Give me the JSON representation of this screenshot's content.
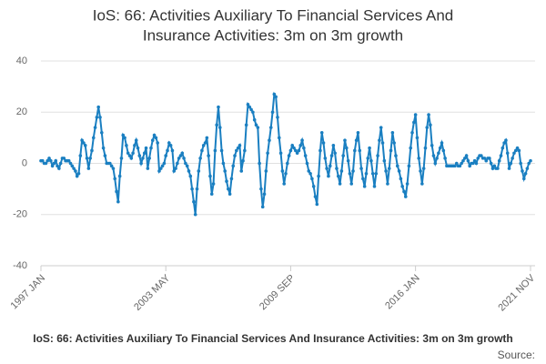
{
  "chart_data": {
    "type": "line",
    "title": [
      "IoS: 66: Activities Auxiliary To Financial Services And",
      "Insurance Activities: 3m on 3m growth"
    ],
    "caption": "IoS: 66: Activities Auxiliary To Financial Services And Insurance Activities: 3m on 3m growth",
    "source": "Source:",
    "color": "#1a7fc1",
    "ylim": [
      -40,
      40
    ],
    "yticks": [
      -40,
      -20,
      0,
      20,
      40
    ],
    "grid": true,
    "categories": [
      "1997 JAN",
      null,
      null,
      null,
      null,
      null,
      null,
      null,
      null,
      null,
      null,
      null,
      null,
      null,
      null,
      null,
      null,
      null,
      null,
      null,
      null,
      null,
      null,
      null,
      null,
      null,
      null,
      null,
      null,
      null,
      null,
      null,
      null,
      null,
      null,
      null,
      null,
      null,
      null,
      null,
      null,
      null,
      null,
      null,
      null,
      null,
      null,
      null,
      null,
      null,
      null,
      null,
      null,
      null,
      null,
      null,
      null,
      null,
      null,
      null,
      null,
      null,
      null,
      null,
      null,
      null,
      null,
      null,
      null,
      null,
      null,
      null,
      null,
      null,
      null,
      null,
      "2003 MAY",
      null,
      null,
      null,
      null,
      null,
      null,
      null,
      null,
      null,
      null,
      null,
      null,
      null,
      null,
      null,
      null,
      null,
      null,
      null,
      null,
      null,
      null,
      null,
      null,
      null,
      null,
      null,
      null,
      null,
      null,
      null,
      null,
      null,
      null,
      null,
      null,
      null,
      null,
      null,
      null,
      null,
      null,
      null,
      null,
      null,
      null,
      null,
      null,
      null,
      null,
      null,
      null,
      null,
      null,
      null,
      null,
      null,
      null,
      null,
      null,
      null,
      null,
      null,
      null,
      null,
      null,
      null,
      null,
      null,
      null,
      null,
      null,
      null,
      null,
      null,
      "2009 SEP",
      null,
      null,
      null,
      null,
      null,
      null,
      null,
      null,
      null,
      null,
      null,
      null,
      null,
      null,
      null,
      null,
      null,
      null,
      null,
      null,
      null,
      null,
      null,
      null,
      null,
      null,
      null,
      null,
      null,
      null,
      null,
      null,
      null,
      null,
      null,
      null,
      null,
      null,
      null,
      null,
      null,
      null,
      null,
      null,
      null,
      null,
      null,
      null,
      null,
      null,
      null,
      null,
      null,
      null,
      null,
      null,
      null,
      null,
      null,
      null,
      null,
      null,
      null,
      null,
      null,
      null,
      null,
      null,
      null,
      null,
      null,
      null,
      null,
      null,
      null,
      "2016 JAN",
      null,
      null,
      null,
      null,
      null,
      null,
      null,
      null,
      null,
      null,
      null,
      null,
      null,
      null,
      null,
      null,
      null,
      null,
      null,
      null,
      null,
      null,
      null,
      null,
      null,
      null,
      null,
      null,
      null,
      null,
      null,
      null,
      null,
      null,
      null,
      null,
      null,
      null,
      null,
      null,
      null,
      null,
      null,
      null,
      null,
      null,
      null,
      null,
      null,
      null,
      null,
      null,
      null,
      null,
      null,
      null,
      null,
      null,
      null,
      null,
      null,
      null,
      null,
      null,
      null,
      null,
      null,
      null,
      null,
      "2021 NOV"
    ],
    "values": [
      1,
      1,
      0,
      0,
      1,
      2,
      1,
      -1,
      0,
      1,
      -1,
      -2,
      0,
      2,
      2,
      1,
      1,
      1,
      0,
      -1,
      -2,
      -3,
      -5,
      -4,
      3,
      9,
      8,
      7,
      2,
      -2,
      2,
      5,
      10,
      14,
      18,
      22,
      18,
      12,
      6,
      3,
      0,
      0,
      0,
      -1,
      -2,
      -6,
      -11,
      -15,
      -5,
      2,
      11,
      10,
      7,
      4,
      3,
      2,
      4,
      7,
      9,
      6,
      3,
      0,
      2,
      4,
      6,
      -2,
      2,
      6,
      9,
      11,
      10,
      8,
      -3,
      -2,
      -1,
      0,
      3,
      5,
      8,
      7,
      5,
      -3,
      -2,
      0,
      2,
      3,
      4,
      2,
      0,
      -1,
      -3,
      -5,
      -10,
      -15,
      -20,
      -10,
      -3,
      2,
      5,
      7,
      8,
      10,
      3,
      -5,
      -12,
      -8,
      5,
      15,
      22,
      14,
      5,
      0,
      -3,
      -7,
      -10,
      -12,
      -6,
      -1,
      3,
      5,
      6,
      7,
      -3,
      1,
      5,
      15,
      23,
      22,
      21,
      20,
      17,
      15,
      14,
      0,
      -10,
      -17,
      -12,
      -3,
      4,
      9,
      14,
      20,
      27,
      26,
      18,
      10,
      4,
      -3,
      -8,
      -4,
      0,
      3,
      5,
      7,
      6,
      5,
      4,
      5,
      7,
      9,
      6,
      3,
      0,
      -3,
      -4,
      -6,
      -9,
      -13,
      -16,
      -5,
      5,
      12,
      8,
      2,
      -2,
      -5,
      -1,
      3,
      7,
      4,
      -2,
      -5,
      -8,
      -3,
      3,
      9,
      6,
      1,
      -4,
      -8,
      -3,
      5,
      9,
      12,
      5,
      -2,
      -6,
      -9,
      -4,
      2,
      6,
      1,
      -4,
      -9,
      -4,
      3,
      9,
      14,
      8,
      1,
      -3,
      -8,
      -2,
      5,
      12,
      8,
      3,
      -1,
      -3,
      -6,
      -9,
      -11,
      -13,
      -8,
      -1,
      6,
      12,
      16,
      19,
      10,
      2,
      -3,
      -8,
      -2,
      6,
      14,
      19,
      15,
      7,
      3,
      0,
      2,
      4,
      6,
      8,
      5,
      2,
      -1,
      -1,
      -1,
      -1,
      -1,
      -1,
      0,
      -1,
      -1,
      0,
      1,
      2,
      3,
      1,
      -1,
      0,
      0,
      1,
      0,
      2,
      3,
      3,
      2,
      2,
      1,
      2,
      2,
      0,
      -2,
      -1,
      -2,
      -2,
      1,
      3,
      6,
      8,
      9,
      4,
      -2,
      0,
      2,
      4,
      5,
      6,
      5,
      0,
      -3,
      -6,
      -4,
      -2,
      0,
      1
    ]
  }
}
